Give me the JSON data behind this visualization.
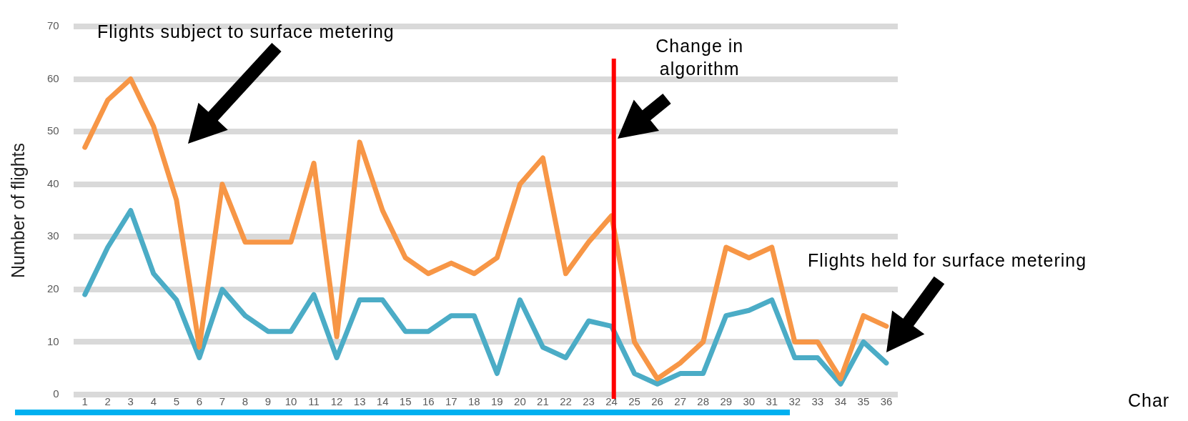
{
  "chart_data": {
    "type": "line",
    "x": [
      1,
      2,
      3,
      4,
      5,
      6,
      7,
      8,
      9,
      10,
      11,
      12,
      13,
      14,
      15,
      16,
      17,
      18,
      19,
      20,
      21,
      22,
      23,
      24,
      25,
      26,
      27,
      28,
      29,
      30,
      31,
      32,
      33,
      34,
      35,
      36
    ],
    "xlim": [
      0.5,
      36.5
    ],
    "xticks": [
      1,
      2,
      3,
      4,
      5,
      6,
      7,
      8,
      9,
      10,
      11,
      12,
      13,
      14,
      15,
      16,
      17,
      18,
      19,
      20,
      21,
      22,
      23,
      24,
      25,
      26,
      27,
      28,
      29,
      30,
      31,
      32,
      33,
      34,
      35,
      36
    ],
    "ylim": [
      0,
      70
    ],
    "yticks": [
      0,
      10,
      20,
      30,
      40,
      50,
      60,
      70
    ],
    "ylabel": "Number of flights",
    "series": [
      {
        "color": "#f79646",
        "values": [
          47,
          56,
          60,
          51,
          37,
          9,
          40,
          29,
          29,
          29,
          44,
          11,
          48,
          35,
          26,
          23,
          25,
          23,
          26,
          40,
          45,
          23,
          29,
          34,
          10,
          3,
          6,
          10,
          28,
          26,
          28,
          10,
          10,
          3,
          15,
          13
        ]
      },
      {
        "color": "#4bacc6",
        "values": [
          19,
          28,
          35,
          23,
          18,
          7,
          20,
          15,
          12,
          12,
          19,
          7,
          18,
          18,
          12,
          12,
          15,
          15,
          4,
          18,
          9,
          7,
          14,
          13,
          4,
          2,
          4,
          4,
          15,
          16,
          18,
          7,
          7,
          2,
          10,
          6
        ]
      }
    ],
    "ref_lines": [
      {
        "axis": "x",
        "value": 24.1,
        "label": "Change in algorithm",
        "color": "#ff0000"
      }
    ],
    "annotations": [
      "Flights subject to surface metering",
      "Flights held for surface metering",
      "Char"
    ],
    "grid": "y",
    "legend": false,
    "marker": "none",
    "line_style": "solid"
  }
}
